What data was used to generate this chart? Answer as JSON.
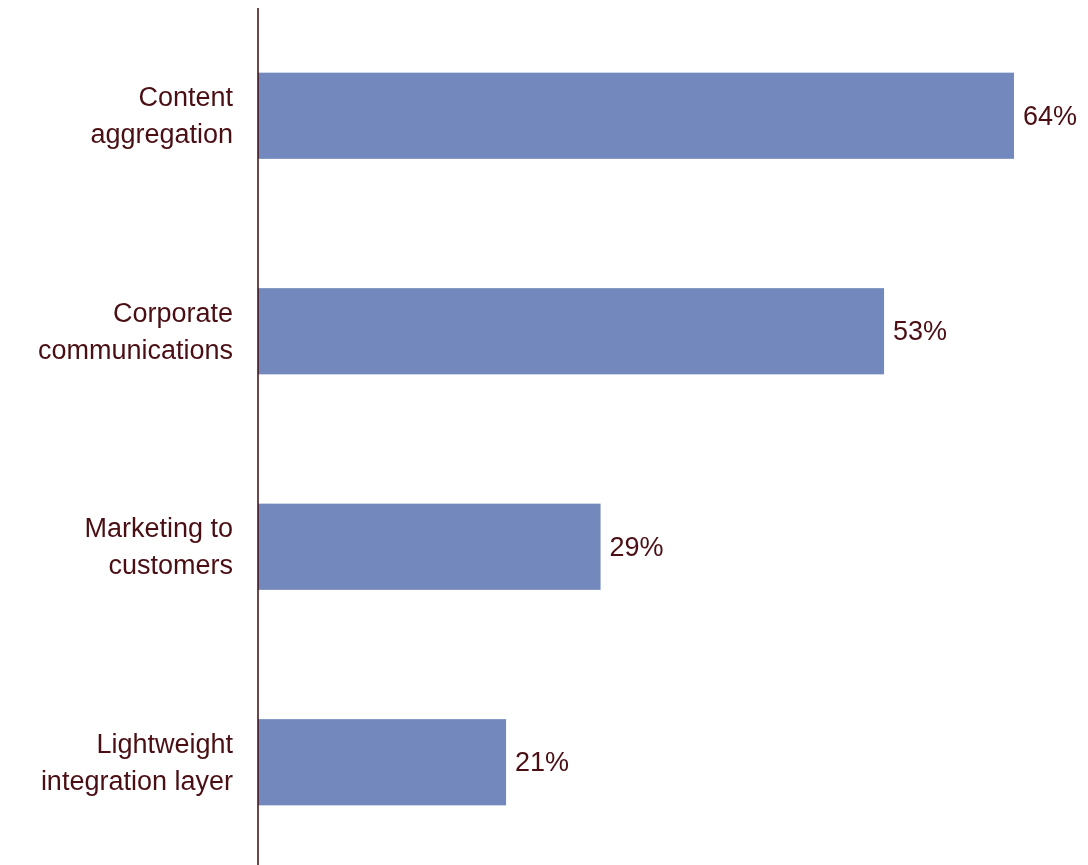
{
  "chart_data": {
    "type": "bar",
    "orientation": "horizontal",
    "categories": [
      "Content\naggregation",
      "Corporate\ncommunications",
      "Marketing to\ncustomers",
      "Lightweight\nintegration layer"
    ],
    "values": [
      64,
      53,
      29,
      21
    ],
    "value_labels": [
      "64%",
      "53%",
      "29%",
      "21%"
    ],
    "color": "#7389bd",
    "tick_labels": "y"
  }
}
